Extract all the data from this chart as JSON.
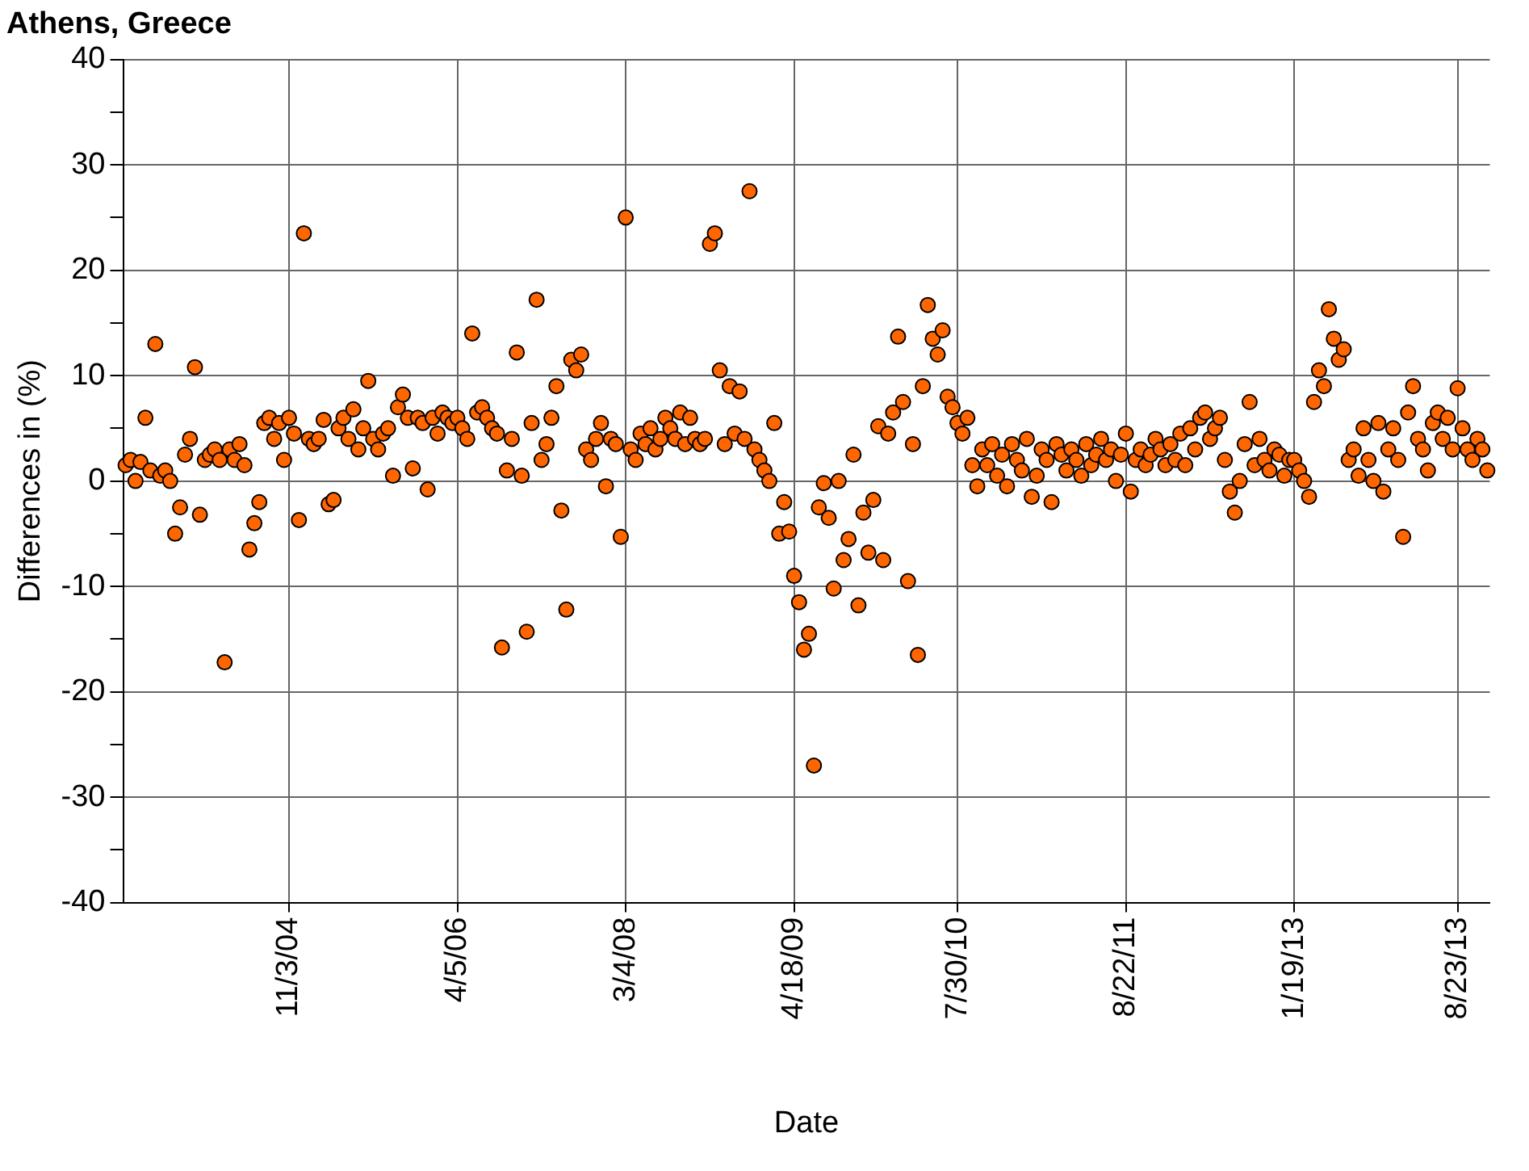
{
  "chart_data": {
    "type": "scatter",
    "title": "Athens, Greece",
    "xlabel": "Date",
    "ylabel": "Differences in (%)",
    "categories": [
      null,
      null,
      null,
      null,
      null,
      null,
      null,
      null,
      null,
      null,
      null,
      null,
      null,
      null,
      null,
      null,
      null,
      null,
      null,
      null,
      null,
      null,
      null,
      null,
      null,
      null,
      null,
      null,
      null,
      null,
      null,
      null,
      null,
      "11/3/04",
      null,
      null,
      null,
      null,
      null,
      null,
      null,
      null,
      null,
      null,
      null,
      null,
      null,
      null,
      null,
      null,
      null,
      null,
      null,
      null,
      null,
      null,
      null,
      null,
      null,
      null,
      null,
      null,
      null,
      null,
      null,
      null,
      null,
      "4/5/06",
      null,
      null,
      null,
      null,
      null,
      null,
      null,
      null,
      null,
      null,
      null,
      null,
      null,
      null,
      null,
      null,
      null,
      null,
      null,
      null,
      null,
      null,
      null,
      null,
      null,
      null,
      null,
      null,
      null,
      null,
      null,
      null,
      null,
      "3/4/08",
      null,
      null,
      null,
      null,
      null,
      null,
      null,
      null,
      null,
      null,
      null,
      null,
      null,
      null,
      null,
      null,
      null,
      null,
      null,
      null,
      null,
      null,
      null,
      null,
      null,
      null,
      null,
      null,
      null,
      null,
      null,
      null,
      null,
      "4/18/09",
      null,
      null,
      null,
      null,
      null,
      null,
      null,
      null,
      null,
      null,
      null,
      null,
      null,
      null,
      null,
      null,
      null,
      null,
      null,
      null,
      null,
      null,
      null,
      null,
      null,
      null,
      null,
      null,
      null,
      null,
      null,
      null,
      "7/30/10",
      null,
      null,
      null,
      null,
      null,
      null,
      null,
      null,
      null,
      null,
      null,
      null,
      null,
      null,
      null,
      null,
      null,
      null,
      null,
      null,
      null,
      null,
      null,
      null,
      null,
      null,
      null,
      null,
      null,
      null,
      null,
      null,
      null,
      "8/22/11",
      null,
      null,
      null,
      null,
      null,
      null,
      null,
      null,
      null,
      null,
      null,
      null,
      null,
      null,
      null,
      null,
      null,
      null,
      null,
      null,
      null,
      null,
      null,
      null,
      null,
      null,
      null,
      null,
      null,
      null,
      null,
      null,
      null,
      "1/19/13",
      null,
      null,
      null,
      null,
      null,
      null,
      null,
      null,
      null,
      null,
      null,
      null,
      null,
      null,
      null,
      null,
      null,
      null,
      null,
      null,
      null,
      null,
      null,
      null,
      null,
      null,
      null,
      null,
      null,
      null,
      null,
      null,
      "8/23/13",
      null,
      null,
      null,
      null,
      null,
      null
    ],
    "values": [
      1.5,
      2,
      0,
      1.8,
      6,
      1,
      13,
      0.5,
      1,
      0,
      -5,
      -2.5,
      2.5,
      4,
      10.8,
      -3.2,
      2,
      2.5,
      3,
      2,
      -17.2,
      3,
      2,
      3.5,
      1.5,
      -6.5,
      -4,
      -2,
      5.5,
      6,
      4,
      5.5,
      2,
      6,
      4.5,
      -3.7,
      23.5,
      4,
      3.5,
      4,
      5.8,
      -2.2,
      -1.8,
      5,
      6,
      4,
      6.8,
      3,
      5,
      9.5,
      4,
      3,
      4.5,
      5,
      0.5,
      7,
      8.2,
      6,
      1.2,
      6,
      5.5,
      -0.8,
      6,
      4.5,
      6.5,
      6,
      5.5,
      6,
      5,
      4,
      14,
      6.5,
      7,
      6,
      5,
      4.5,
      -15.8,
      1,
      4,
      12.2,
      0.5,
      -14.3,
      5.5,
      17.2,
      2,
      3.5,
      6,
      9,
      -2.8,
      -12.2,
      11.5,
      10.5,
      12,
      3,
      2,
      4,
      5.5,
      -0.5,
      4,
      3.5,
      -5.3,
      25,
      3,
      2,
      4.5,
      3.5,
      5,
      3,
      4,
      6,
      5,
      4,
      6.5,
      3.5,
      6,
      4,
      3.5,
      4,
      22.5,
      23.5,
      10.5,
      3.5,
      9,
      4.5,
      8.5,
      4,
      27.5,
      3,
      2,
      1,
      0,
      5.5,
      -5,
      -2,
      -4.8,
      -9,
      -11.5,
      -16,
      -14.5,
      -27,
      -2.5,
      -0.2,
      -3.5,
      -10.2,
      0,
      -7.5,
      -5.5,
      2.5,
      -11.8,
      -3,
      -6.8,
      -1.8,
      5.2,
      -7.5,
      4.5,
      6.5,
      13.7,
      7.5,
      -9.5,
      3.5,
      -16.5,
      9,
      16.7,
      13.5,
      12,
      14.3,
      8,
      7,
      5.5,
      4.5,
      6,
      1.5,
      -0.5,
      3,
      1.5,
      3.5,
      0.5,
      2.5,
      -0.5,
      3.5,
      2,
      1,
      4,
      -1.5,
      0.5,
      3,
      2,
      -2,
      3.5,
      2.5,
      1,
      3,
      2,
      0.5,
      3.5,
      1.5,
      2.5,
      4,
      2,
      3,
      0,
      2.5,
      4.5,
      -1,
      2,
      3,
      1.5,
      2.5,
      4,
      3,
      1.5,
      3.5,
      2,
      4.5,
      1.5,
      5,
      3,
      6,
      6.5,
      4,
      5,
      6,
      2,
      -1,
      -3,
      0,
      3.5,
      7.5,
      1.5,
      4,
      2,
      1,
      3,
      2.5,
      0.5,
      2,
      2,
      1,
      0,
      -1.5,
      7.5,
      10.5,
      9,
      16.3,
      13.5,
      11.5,
      12.5,
      2,
      3,
      0.5,
      5,
      2,
      0,
      5.5,
      -1,
      3,
      5,
      2,
      -5.3,
      6.5,
      9,
      4,
      3,
      1,
      5.5,
      6.5,
      4,
      6,
      3,
      8.8,
      5,
      3,
      2,
      4,
      3,
      1
    ],
    "color": "#ff6600",
    "marker": "circle",
    "ylim": [
      -40,
      40
    ],
    "yticks": [
      -40,
      {
        "value": -35,
        "label": null
      },
      -30,
      {
        "value": -25,
        "label": null
      },
      -20,
      {
        "value": -15,
        "label": null
      },
      -10,
      {
        "value": -5,
        "label": null
      },
      0,
      {
        "value": 5,
        "label": null
      },
      10,
      {
        "value": 15,
        "label": null
      },
      20,
      {
        "value": 25,
        "label": null
      },
      30,
      {
        "value": 35,
        "label": null
      },
      40
    ],
    "grid": true,
    "legend": false
  }
}
